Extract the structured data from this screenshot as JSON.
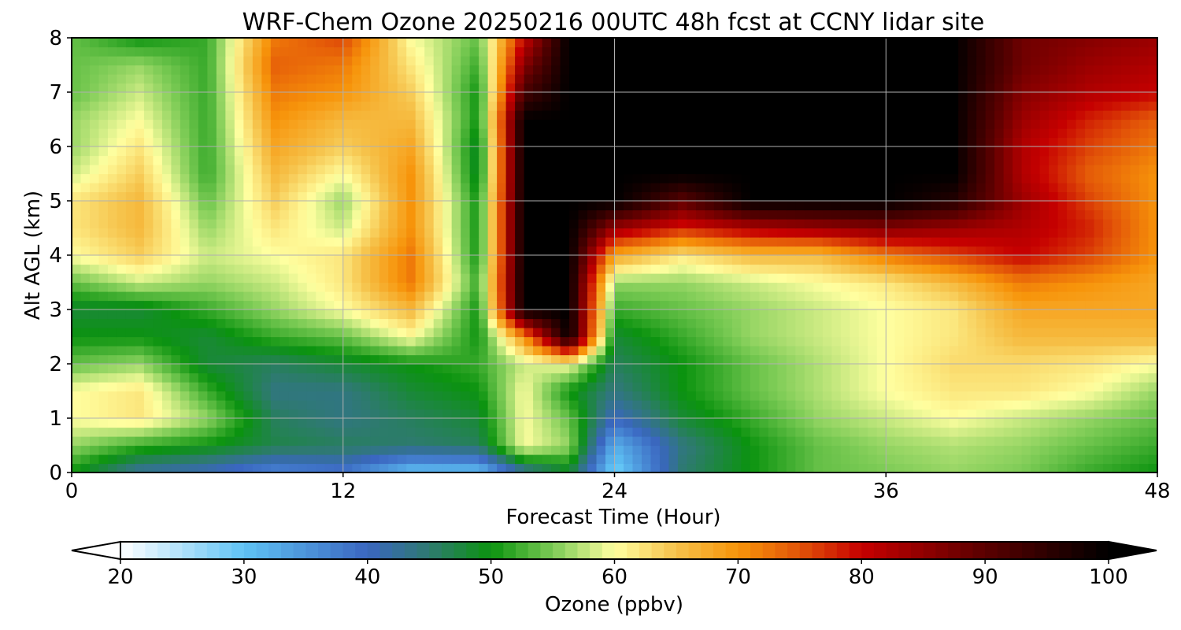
{
  "chart_data": {
    "type": "heatmap",
    "title": "WRF-Chem Ozone  20250216 00UTC 48h fcst at CCNY lidar site",
    "xlabel": "Forecast Time (Hour)",
    "ylabel": "Alt AGL (km)",
    "xlim": [
      0,
      48
    ],
    "ylim": [
      0,
      8
    ],
    "x_ticks": [
      0,
      12,
      24,
      36,
      48
    ],
    "y_ticks": [
      0,
      1,
      2,
      3,
      4,
      5,
      6,
      7,
      8
    ],
    "grid": true,
    "x": [
      0,
      3,
      6,
      9,
      12,
      15,
      18,
      20,
      22,
      24,
      27,
      30,
      33,
      36,
      39,
      42,
      45,
      48
    ],
    "y": [
      0,
      0.5,
      1,
      1.5,
      2,
      2.5,
      3,
      3.5,
      4,
      4.5,
      5,
      5.5,
      6,
      6.5,
      7,
      7.5,
      8
    ],
    "z_unit": "ppbv",
    "z": [
      [
        50,
        42,
        40,
        36,
        38,
        30,
        30,
        42,
        48,
        28,
        45,
        50,
        54,
        55,
        56,
        55,
        52,
        50
      ],
      [
        56,
        52,
        50,
        47,
        46,
        45,
        46,
        60,
        56,
        32,
        44,
        50,
        54,
        56,
        57,
        56,
        54,
        52
      ],
      [
        60,
        62,
        56,
        46,
        44,
        46,
        48,
        60,
        54,
        40,
        48,
        52,
        56,
        58,
        60,
        58,
        56,
        54
      ],
      [
        60,
        62,
        52,
        44,
        44,
        48,
        50,
        60,
        50,
        44,
        50,
        54,
        57,
        60,
        62,
        62,
        60,
        56
      ],
      [
        54,
        56,
        48,
        46,
        48,
        50,
        52,
        58,
        60,
        46,
        50,
        54,
        57,
        60,
        63,
        63,
        62,
        60
      ],
      [
        50,
        50,
        48,
        52,
        54,
        60,
        50,
        70,
        100,
        48,
        52,
        56,
        58,
        60,
        62,
        66,
        66,
        66
      ],
      [
        48,
        48,
        52,
        56,
        60,
        66,
        50,
        100,
        100,
        52,
        54,
        56,
        58,
        60,
        62,
        68,
        68,
        68
      ],
      [
        54,
        58,
        56,
        58,
        62,
        72,
        52,
        100,
        100,
        56,
        56,
        58,
        60,
        62,
        66,
        72,
        70,
        68
      ],
      [
        60,
        64,
        58,
        60,
        62,
        72,
        50,
        100,
        100,
        68,
        62,
        66,
        66,
        72,
        76,
        80,
        76,
        70
      ],
      [
        62,
        66,
        56,
        62,
        58,
        70,
        50,
        100,
        100,
        84,
        78,
        82,
        84,
        86,
        84,
        82,
        78,
        70
      ],
      [
        62,
        66,
        54,
        64,
        56,
        70,
        50,
        100,
        100,
        100,
        90,
        100,
        100,
        100,
        96,
        84,
        76,
        70
      ],
      [
        58,
        64,
        52,
        66,
        60,
        70,
        48,
        100,
        100,
        100,
        100,
        100,
        100,
        100,
        100,
        82,
        74,
        70
      ],
      [
        56,
        62,
        52,
        68,
        64,
        68,
        48,
        100,
        100,
        100,
        100,
        100,
        100,
        100,
        100,
        82,
        76,
        72
      ],
      [
        56,
        60,
        52,
        70,
        66,
        66,
        50,
        100,
        100,
        100,
        100,
        100,
        100,
        100,
        100,
        84,
        78,
        74
      ],
      [
        54,
        58,
        52,
        72,
        70,
        64,
        50,
        92,
        100,
        100,
        100,
        100,
        100,
        100,
        100,
        86,
        82,
        80
      ],
      [
        54,
        56,
        52,
        74,
        72,
        62,
        52,
        86,
        100,
        100,
        100,
        100,
        100,
        100,
        100,
        88,
        84,
        82
      ],
      [
        54,
        50,
        52,
        72,
        76,
        60,
        54,
        80,
        100,
        100,
        100,
        100,
        100,
        100,
        100,
        88,
        86,
        84
      ]
    ],
    "colorbar": {
      "label": "Ozone  (ppbv)",
      "min": 20,
      "max": 100,
      "ticks": [
        20,
        30,
        40,
        50,
        60,
        70,
        80,
        90,
        100
      ],
      "extend": "both",
      "stops": [
        {
          "v": 20,
          "c": "#ffffff"
        },
        {
          "v": 30,
          "c": "#5fc3f5"
        },
        {
          "v": 40,
          "c": "#3a66c0"
        },
        {
          "v": 45,
          "c": "#2e7a70"
        },
        {
          "v": 50,
          "c": "#0b930f"
        },
        {
          "v": 55,
          "c": "#7ccb55"
        },
        {
          "v": 60,
          "c": "#ffffa0"
        },
        {
          "v": 65,
          "c": "#f6c24a"
        },
        {
          "v": 70,
          "c": "#f7940a"
        },
        {
          "v": 75,
          "c": "#e25308"
        },
        {
          "v": 80,
          "c": "#c60000"
        },
        {
          "v": 90,
          "c": "#5a0000"
        },
        {
          "v": 100,
          "c": "#000000"
        }
      ]
    }
  }
}
